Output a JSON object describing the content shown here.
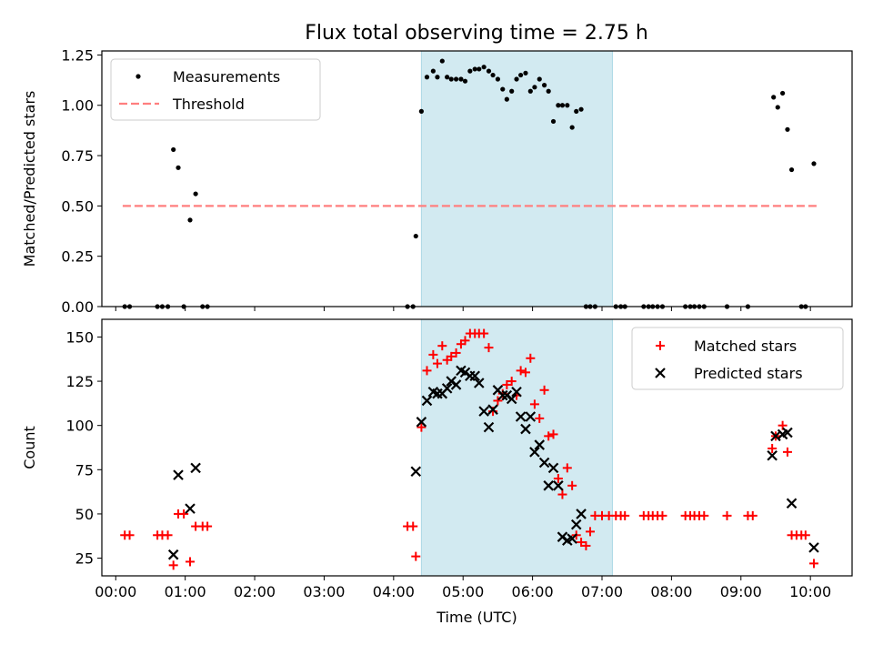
{
  "title": "Flux total observing time = 2.75 h",
  "colors": {
    "shade": "#add8e6",
    "threshold": "#ff7f7f",
    "measurement": "#000000",
    "matched": "#ff0000",
    "predicted": "#000000"
  },
  "chart_data": [
    {
      "type": "scatter",
      "id": "top",
      "ylabel": "Matched/Predicted stars",
      "xlabel": "",
      "xlim": [
        -0.2,
        10.6
      ],
      "ylim": [
        0,
        1.27
      ],
      "yticks": [
        0.0,
        0.25,
        0.5,
        0.75,
        1.0,
        1.25
      ],
      "ytick_labels": [
        "0.00",
        "0.25",
        "0.50",
        "0.75",
        "1.00",
        "1.25"
      ],
      "xticks": [
        0,
        1,
        2,
        3,
        4,
        5,
        6,
        7,
        8,
        9,
        10
      ],
      "shaded_span": [
        4.4,
        7.15
      ],
      "legend": {
        "position": "upper-left",
        "entries": [
          "Measurements",
          "Threshold"
        ]
      },
      "threshold": {
        "name": "Threshold",
        "y": 0.5,
        "x": [
          0.1,
          10.1
        ]
      },
      "series": [
        {
          "name": "Measurements",
          "marker": "dot",
          "points": [
            [
              0.13,
              0
            ],
            [
              0.2,
              0
            ],
            [
              0.6,
              0
            ],
            [
              0.67,
              0
            ],
            [
              0.75,
              0
            ],
            [
              0.83,
              0.78
            ],
            [
              0.9,
              0.69
            ],
            [
              0.98,
              0
            ],
            [
              1.07,
              0.43
            ],
            [
              1.15,
              0.56
            ],
            [
              1.25,
              0
            ],
            [
              1.32,
              0
            ],
            [
              4.2,
              0
            ],
            [
              4.28,
              0
            ],
            [
              4.32,
              0.35
            ],
            [
              4.4,
              0.97
            ],
            [
              4.48,
              1.14
            ],
            [
              4.57,
              1.17
            ],
            [
              4.63,
              1.14
            ],
            [
              4.7,
              1.22
            ],
            [
              4.77,
              1.14
            ],
            [
              4.83,
              1.13
            ],
            [
              4.9,
              1.13
            ],
            [
              4.97,
              1.13
            ],
            [
              5.03,
              1.12
            ],
            [
              5.1,
              1.17
            ],
            [
              5.17,
              1.18
            ],
            [
              5.23,
              1.18
            ],
            [
              5.3,
              1.19
            ],
            [
              5.37,
              1.17
            ],
            [
              5.43,
              1.15
            ],
            [
              5.5,
              1.13
            ],
            [
              5.57,
              1.08
            ],
            [
              5.63,
              1.03
            ],
            [
              5.7,
              1.07
            ],
            [
              5.77,
              1.13
            ],
            [
              5.83,
              1.15
            ],
            [
              5.9,
              1.16
            ],
            [
              5.97,
              1.07
            ],
            [
              6.03,
              1.09
            ],
            [
              6.1,
              1.13
            ],
            [
              6.17,
              1.1
            ],
            [
              6.23,
              1.07
            ],
            [
              6.3,
              0.92
            ],
            [
              6.37,
              1.0
            ],
            [
              6.43,
              1.0
            ],
            [
              6.5,
              1.0
            ],
            [
              6.57,
              0.89
            ],
            [
              6.63,
              0.97
            ],
            [
              6.7,
              0.98
            ],
            [
              6.77,
              0
            ],
            [
              6.83,
              0
            ],
            [
              6.9,
              0
            ],
            [
              7.2,
              0
            ],
            [
              7.27,
              0
            ],
            [
              7.33,
              0
            ],
            [
              7.6,
              0
            ],
            [
              7.67,
              0
            ],
            [
              7.73,
              0
            ],
            [
              7.8,
              0
            ],
            [
              7.87,
              0
            ],
            [
              8.2,
              0
            ],
            [
              8.27,
              0
            ],
            [
              8.33,
              0
            ],
            [
              8.4,
              0
            ],
            [
              8.47,
              0
            ],
            [
              8.8,
              0
            ],
            [
              9.1,
              0
            ],
            [
              9.47,
              1.04
            ],
            [
              9.53,
              0.99
            ],
            [
              9.6,
              1.06
            ],
            [
              9.67,
              0.88
            ],
            [
              9.73,
              0.68
            ],
            [
              9.87,
              0
            ],
            [
              9.93,
              0
            ],
            [
              10.05,
              0.71
            ]
          ]
        }
      ]
    },
    {
      "type": "scatter",
      "id": "bottom",
      "ylabel": "Count",
      "xlabel": "Time (UTC)",
      "xlim": [
        -0.2,
        10.6
      ],
      "ylim": [
        15,
        160
      ],
      "yticks": [
        25,
        50,
        75,
        100,
        125,
        150
      ],
      "ytick_labels": [
        "25",
        "50",
        "75",
        "100",
        "125",
        "150"
      ],
      "xticks": [
        0,
        1,
        2,
        3,
        4,
        5,
        6,
        7,
        8,
        9,
        10
      ],
      "xtick_labels": [
        "00:00",
        "01:00",
        "02:00",
        "03:00",
        "04:00",
        "05:00",
        "06:00",
        "07:00",
        "08:00",
        "09:00",
        "10:00"
      ],
      "shaded_span": [
        4.4,
        7.15
      ],
      "legend": {
        "position": "upper-right",
        "entries": [
          "Matched stars",
          "Predicted stars"
        ]
      },
      "series": [
        {
          "name": "Matched stars",
          "marker": "plus",
          "points": [
            [
              0.13,
              38
            ],
            [
              0.2,
              38
            ],
            [
              0.6,
              38
            ],
            [
              0.67,
              38
            ],
            [
              0.75,
              38
            ],
            [
              0.83,
              21
            ],
            [
              0.9,
              50
            ],
            [
              0.98,
              50
            ],
            [
              1.07,
              23
            ],
            [
              1.15,
              43
            ],
            [
              1.25,
              43
            ],
            [
              1.32,
              43
            ],
            [
              4.2,
              43
            ],
            [
              4.28,
              43
            ],
            [
              4.32,
              26
            ],
            [
              4.4,
              99
            ],
            [
              4.48,
              131
            ],
            [
              4.57,
              140
            ],
            [
              4.63,
              135
            ],
            [
              4.7,
              145
            ],
            [
              4.77,
              137
            ],
            [
              4.83,
              139
            ],
            [
              4.9,
              141
            ],
            [
              4.97,
              146
            ],
            [
              5.03,
              148
            ],
            [
              5.1,
              152
            ],
            [
              5.17,
              152
            ],
            [
              5.23,
              152
            ],
            [
              5.3,
              152
            ],
            [
              5.37,
              144
            ],
            [
              5.43,
              108
            ],
            [
              5.5,
              114
            ],
            [
              5.57,
              118
            ],
            [
              5.63,
              123
            ],
            [
              5.7,
              125
            ],
            [
              5.77,
              117
            ],
            [
              5.83,
              131
            ],
            [
              5.9,
              130
            ],
            [
              5.97,
              138
            ],
            [
              6.03,
              112
            ],
            [
              6.1,
              104
            ],
            [
              6.17,
              120
            ],
            [
              6.23,
              94
            ],
            [
              6.3,
              95
            ],
            [
              6.37,
              70
            ],
            [
              6.43,
              61
            ],
            [
              6.5,
              76
            ],
            [
              6.57,
              66
            ],
            [
              6.63,
              38
            ],
            [
              6.7,
              34
            ],
            [
              6.77,
              32
            ],
            [
              6.83,
              40
            ],
            [
              6.9,
              49
            ],
            [
              7.0,
              49
            ],
            [
              7.1,
              49
            ],
            [
              7.2,
              49
            ],
            [
              7.27,
              49
            ],
            [
              7.33,
              49
            ],
            [
              7.6,
              49
            ],
            [
              7.67,
              49
            ],
            [
              7.73,
              49
            ],
            [
              7.8,
              49
            ],
            [
              7.87,
              49
            ],
            [
              8.2,
              49
            ],
            [
              8.27,
              49
            ],
            [
              8.33,
              49
            ],
            [
              8.4,
              49
            ],
            [
              8.47,
              49
            ],
            [
              8.8,
              49
            ],
            [
              9.1,
              49
            ],
            [
              9.17,
              49
            ],
            [
              9.45,
              87
            ],
            [
              9.5,
              94
            ],
            [
              9.6,
              100
            ],
            [
              9.67,
              85
            ],
            [
              9.73,
              38
            ],
            [
              9.8,
              38
            ],
            [
              9.87,
              38
            ],
            [
              9.93,
              38
            ],
            [
              10.05,
              22
            ]
          ]
        },
        {
          "name": "Predicted stars",
          "marker": "x",
          "points": [
            [
              0.83,
              27
            ],
            [
              0.9,
              72
            ],
            [
              1.07,
              53
            ],
            [
              1.15,
              76
            ],
            [
              4.32,
              74
            ],
            [
              4.4,
              102
            ],
            [
              4.48,
              114
            ],
            [
              4.57,
              119
            ],
            [
              4.63,
              118
            ],
            [
              4.7,
              118
            ],
            [
              4.77,
              121
            ],
            [
              4.83,
              125
            ],
            [
              4.9,
              123
            ],
            [
              4.97,
              131
            ],
            [
              5.03,
              130
            ],
            [
              5.1,
              128
            ],
            [
              5.17,
              128
            ],
            [
              5.23,
              124
            ],
            [
              5.3,
              108
            ],
            [
              5.37,
              99
            ],
            [
              5.43,
              109
            ],
            [
              5.5,
              120
            ],
            [
              5.57,
              117
            ],
            [
              5.63,
              117
            ],
            [
              5.7,
              115
            ],
            [
              5.77,
              119
            ],
            [
              5.83,
              105
            ],
            [
              5.9,
              98
            ],
            [
              5.97,
              105
            ],
            [
              6.03,
              85
            ],
            [
              6.1,
              89
            ],
            [
              6.17,
              79
            ],
            [
              6.23,
              66
            ],
            [
              6.3,
              76
            ],
            [
              6.37,
              66
            ],
            [
              6.43,
              37
            ],
            [
              6.5,
              35
            ],
            [
              6.57,
              36
            ],
            [
              6.63,
              44
            ],
            [
              6.7,
              50
            ],
            [
              9.45,
              83
            ],
            [
              9.5,
              94
            ],
            [
              9.6,
              95
            ],
            [
              9.67,
              96
            ],
            [
              9.73,
              56
            ],
            [
              10.05,
              31
            ]
          ]
        }
      ]
    }
  ]
}
